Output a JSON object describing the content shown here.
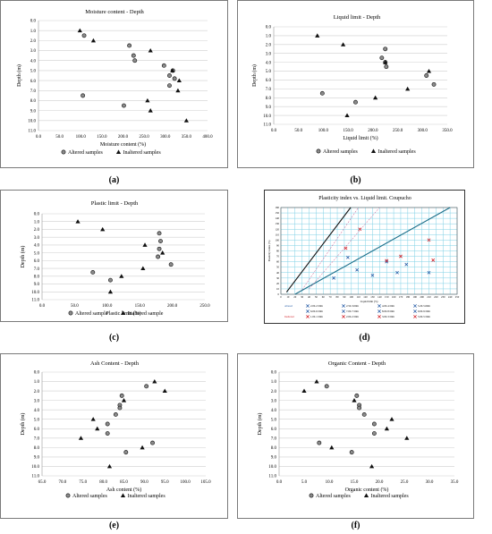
{
  "panels": [
    {
      "label": "(a)",
      "legend": [
        "Altered samples",
        "Inaltered samples"
      ]
    },
    {
      "label": "(b)",
      "legend": [
        "Altered samples",
        "Inaltered samples"
      ]
    },
    {
      "label": "(c)",
      "legend": [
        "Altered sample",
        "Inaltered sample"
      ]
    },
    {
      "label": "(d)",
      "legend": []
    },
    {
      "label": "(e)",
      "legend": [
        "Altered samples",
        "Inaltered samples"
      ]
    },
    {
      "label": "(f)",
      "legend": [
        "Altered samples",
        "Inaltered samples"
      ]
    }
  ],
  "plasticity_chart": {
    "title": "Plasticity index vs. Liquid limit. Coupucho",
    "ylabel": "Plasticity index (%)",
    "xlabel": "Liquid limit (%)",
    "legend_rows": [
      {
        "group": "altered",
        "label": "Altered",
        "entries": [
          "2.00-2.50m",
          "2.50-3.00m",
          "4.00-4.50m",
          "5.20-5.60m"
        ]
      },
      {
        "group": "altered",
        "label": "",
        "entries": [
          "6.00-6.50m",
          "7.00-7.50m",
          "8.00-8.50m",
          "9.00-9.50m"
        ]
      },
      {
        "group": "inaltered",
        "label": "Inaltered",
        "entries": [
          "1.00-1.50m",
          "2.00-2.50m",
          "3.00-3.50m",
          "5.00-5.50m"
        ]
      }
    ]
  },
  "chart_data": [
    {
      "type": "scatter",
      "title": "Moisture content - Depth",
      "xlabel": "Moisture content (%)",
      "ylabel": "Depth (m)",
      "xlim": [
        0,
        400
      ],
      "ylim": [
        0,
        11
      ],
      "y_inverted": true,
      "xticks": [
        "0.0",
        "50.0",
        "100.0",
        "150.0",
        "200.0",
        "250.0",
        "300.0",
        "350.0",
        "400.0"
      ],
      "yticks": [
        "0.0",
        "1.0",
        "2.0",
        "3.0",
        "4.0",
        "5.0",
        "6.0",
        "7.0",
        "8.0",
        "9.0",
        "10.0",
        "11.0"
      ],
      "grid": "horizontal",
      "legend": "bottom",
      "series": [
        {
          "name": "Altered samples",
          "marker": "circle",
          "x": [
            108,
            215,
            225,
            228,
            297,
            310,
            310,
            318,
            322,
            105,
            202
          ],
          "y": [
            1.5,
            2.5,
            3.5,
            4.0,
            4.5,
            5.5,
            6.5,
            5.0,
            5.8,
            7.5,
            8.5
          ]
        },
        {
          "name": "Inaltered samples",
          "marker": "triangle",
          "x": [
            98,
            130,
            265,
            317,
            333,
            330,
            258,
            265,
            350
          ],
          "y": [
            1.0,
            2.0,
            3.0,
            5.0,
            6.0,
            7.0,
            8.0,
            9.0,
            10.0
          ]
        }
      ]
    },
    {
      "type": "scatter",
      "title": "Liquid limit - Depth",
      "xlabel": "Liquid limit (%)",
      "ylabel": "Depth (m)",
      "xlim": [
        0,
        350
      ],
      "ylim": [
        0,
        11
      ],
      "y_inverted": true,
      "xticks": [
        "0.0",
        "50.0",
        "100.0",
        "150.0",
        "200.0",
        "250.0",
        "300.0",
        "350.0"
      ],
      "yticks": [
        "0.0",
        "1.0",
        "2.0",
        "3.0",
        "4.0",
        "5.0",
        "6.0",
        "7.0",
        "8.0",
        "9.0",
        "10.0",
        "11.0"
      ],
      "grid": "horizontal",
      "legend": "bottom",
      "series": [
        {
          "name": "Altered samples",
          "marker": "circle",
          "x": [
            225,
            218,
            225,
            227,
            308,
            323,
            98,
            165
          ],
          "y": [
            2.5,
            3.5,
            4.0,
            4.5,
            5.5,
            6.5,
            7.5,
            8.5
          ]
        },
        {
          "name": "Inaltered samples",
          "marker": "triangle",
          "x": [
            88,
            140,
            225,
            313,
            270,
            205,
            148
          ],
          "y": [
            1.0,
            2.0,
            4.0,
            5.0,
            7.0,
            8.0,
            10.0
          ]
        }
      ]
    },
    {
      "type": "scatter",
      "title": "Plastic limit - Depth",
      "xlabel": "Plastic limit (%)",
      "ylabel": "Depth (m)",
      "xlim": [
        0,
        250
      ],
      "ylim": [
        0,
        11
      ],
      "y_inverted": true,
      "xticks": [
        "0.0",
        "50.0",
        "100.0",
        "150.0",
        "200.0",
        "250.0"
      ],
      "yticks": [
        "0.0",
        "1.0",
        "2.0",
        "3.0",
        "4.0",
        "5.0",
        "6.0",
        "7.0",
        "8.0",
        "9.0",
        "10.0",
        "11.0"
      ],
      "grid": "horizontal",
      "legend": "bottom",
      "series": [
        {
          "name": "Altered sample",
          "marker": "circle",
          "x": [
            180,
            182,
            180,
            178,
            198,
            78,
            105
          ],
          "y": [
            2.5,
            3.5,
            4.5,
            5.5,
            6.5,
            7.5,
            8.5
          ]
        },
        {
          "name": "Inaltered sample",
          "marker": "triangle",
          "x": [
            55,
            93,
            158,
            185,
            155,
            122,
            105
          ],
          "y": [
            1.0,
            2.0,
            4.0,
            5.0,
            7.0,
            8.0,
            10.0
          ]
        }
      ]
    },
    {
      "type": "scatter",
      "title": "Ash Content - Depth",
      "xlabel": "Ash content (%)",
      "ylabel": "Depth (m)",
      "xlim": [
        65,
        105
      ],
      "ylim": [
        0,
        11
      ],
      "y_inverted": true,
      "xticks": [
        "65.0",
        "70.0",
        "75.0",
        "80.0",
        "85.0",
        "90.0",
        "95.0",
        "100.0",
        "105.0"
      ],
      "yticks": [
        "0.0",
        "1.0",
        "2.0",
        "3.0",
        "4.0",
        "5.0",
        "6.0",
        "7.0",
        "8.0",
        "9.0",
        "10.0",
        "11.0"
      ],
      "grid": "horizontal",
      "legend": "bottom",
      "series": [
        {
          "name": "Altered samples",
          "marker": "circle",
          "x": [
            90.5,
            84.5,
            84.0,
            84.0,
            83.0,
            81.0,
            81.0,
            92.0,
            85.5
          ],
          "y": [
            1.5,
            2.5,
            3.5,
            3.8,
            4.5,
            5.5,
            6.5,
            7.5,
            8.5
          ]
        },
        {
          "name": "Inaltered samples",
          "marker": "triangle",
          "x": [
            92.5,
            95.0,
            85.0,
            77.5,
            78.5,
            74.5,
            89.5,
            81.5
          ],
          "y": [
            1.0,
            2.0,
            3.0,
            5.0,
            6.0,
            7.0,
            8.0,
            10.0
          ]
        }
      ]
    },
    {
      "type": "scatter",
      "title": "Organic Content - Depth",
      "xlabel": "Organic content (%)",
      "ylabel": "Depth (m)",
      "xlim": [
        0,
        35
      ],
      "ylim": [
        0,
        11
      ],
      "y_inverted": true,
      "xticks": [
        "0.0",
        "5.0",
        "10.0",
        "15.0",
        "20.0",
        "25.0",
        "30.0",
        "35.0"
      ],
      "yticks": [
        "0.0",
        "1.0",
        "2.0",
        "3.0",
        "4.0",
        "5.0",
        "6.0",
        "7.0",
        "8.0",
        "9.0",
        "10.0",
        "11.0"
      ],
      "grid": "horizontal",
      "legend": "bottom",
      "series": [
        {
          "name": "Altered samples",
          "marker": "circle",
          "x": [
            9.5,
            15.5,
            16.0,
            16.0,
            17.0,
            19.0,
            19.0,
            8.0,
            14.5
          ],
          "y": [
            1.5,
            2.5,
            3.5,
            3.8,
            4.5,
            5.5,
            6.5,
            7.5,
            8.5
          ]
        },
        {
          "name": "Inaltered samples",
          "marker": "triangle",
          "x": [
            7.5,
            5.0,
            15.0,
            22.5,
            21.5,
            25.5,
            10.5,
            18.5
          ],
          "y": [
            1.0,
            2.0,
            3.0,
            5.0,
            6.0,
            7.0,
            8.0,
            10.0
          ]
        }
      ]
    },
    {
      "type": "scatter",
      "title": "Plasticity index vs. Liquid limit. Coupucho",
      "xlabel": "Liquid limit (%)",
      "ylabel": "Plasticity index (%)",
      "xlim": [
        0,
        250
      ],
      "ylim": [
        0,
        160
      ],
      "xticks": [
        "0",
        "10",
        "20",
        "30",
        "40",
        "50",
        "60",
        "70",
        "80",
        "90",
        "100",
        "110",
        "120",
        "130",
        "140",
        "150",
        "160",
        "170",
        "180",
        "190",
        "200",
        "210",
        "220",
        "230",
        "240",
        "250"
      ],
      "yticks": [
        "0",
        "10",
        "20",
        "30",
        "40",
        "50",
        "60",
        "70",
        "80",
        "90",
        "100",
        "110",
        "120",
        "130",
        "140",
        "150",
        "160"
      ],
      "grid": "both",
      "legend": "bottom",
      "lines": [
        {
          "kind": "U-line",
          "points": [
            [
              8,
              4
            ],
            [
              99,
              160
            ]
          ]
        },
        {
          "kind": "A-line",
          "points": [
            [
              20,
              0
            ],
            [
              240,
              160
            ]
          ]
        }
      ],
      "series": [
        {
          "name": "Altered",
          "color": "#2a5fa8",
          "marker": "x",
          "x": [
            210,
            95,
            108,
            150,
            165,
            178,
            130,
            75
          ],
          "y": [
            40,
            68,
            45,
            60,
            40,
            55,
            35,
            30
          ]
        },
        {
          "name": "Inaltered",
          "color": "#d2232a",
          "marker": "x",
          "x": [
            92,
            112,
            150,
            170,
            210,
            216
          ],
          "y": [
            85,
            120,
            62,
            70,
            100,
            63
          ]
        }
      ]
    }
  ]
}
